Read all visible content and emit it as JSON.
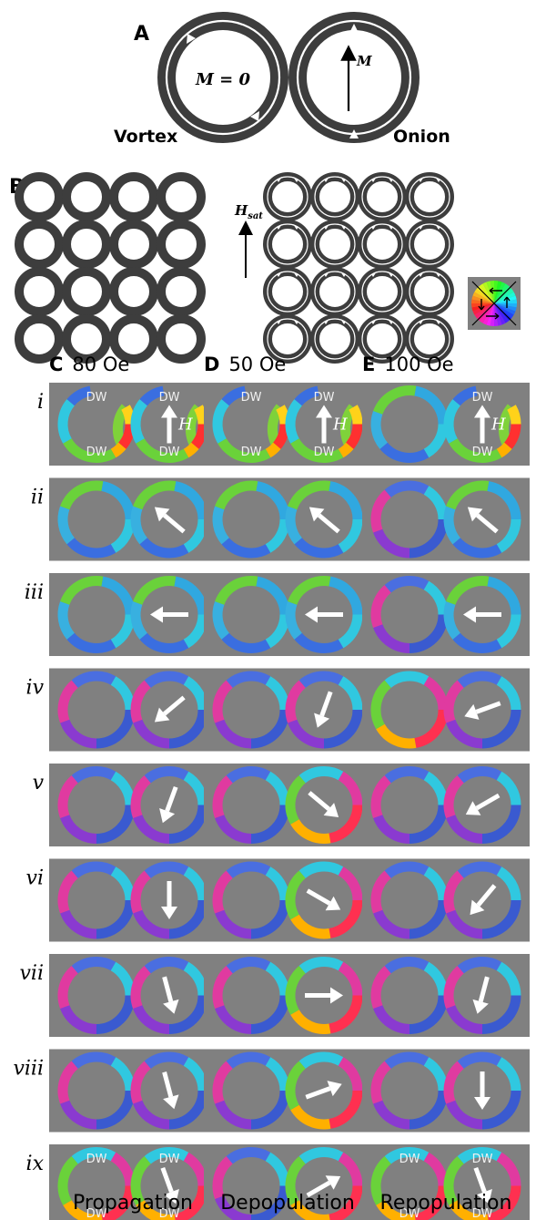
{
  "panel_a": {
    "label": "A",
    "vortex_caption": "Vortex",
    "onion_caption": "Onion",
    "vortex_m": "M = 0",
    "onion_m": "M"
  },
  "panel_b": {
    "label": "B",
    "field_label": "H",
    "field_sub": "sat"
  },
  "columns": [
    {
      "letter": "C",
      "field": "80 Oe",
      "caption": "Propagation"
    },
    {
      "letter": "D",
      "field": "50 Oe",
      "caption": "Depopulation"
    },
    {
      "letter": "E",
      "field": "100 Oe",
      "caption": "Repopulation"
    }
  ],
  "rows": [
    "i",
    "ii",
    "iii",
    "iv",
    "v",
    "vi",
    "vii",
    "viii",
    "ix"
  ],
  "dw_label": "DW",
  "h_label": "H",
  "colors": {
    "ring_dark": "#3d3d3d",
    "panel_bg": "#808080",
    "arrow": "#ffffff"
  },
  "arrow_angles_deg": [
    [
      90,
      140,
      180,
      220,
      250,
      270,
      285,
      285,
      290
    ],
    [
      90,
      140,
      180,
      250,
      320,
      330,
      0,
      20,
      30
    ],
    [
      90,
      140,
      180,
      200,
      210,
      230,
      255,
      270,
      290
    ]
  ]
}
